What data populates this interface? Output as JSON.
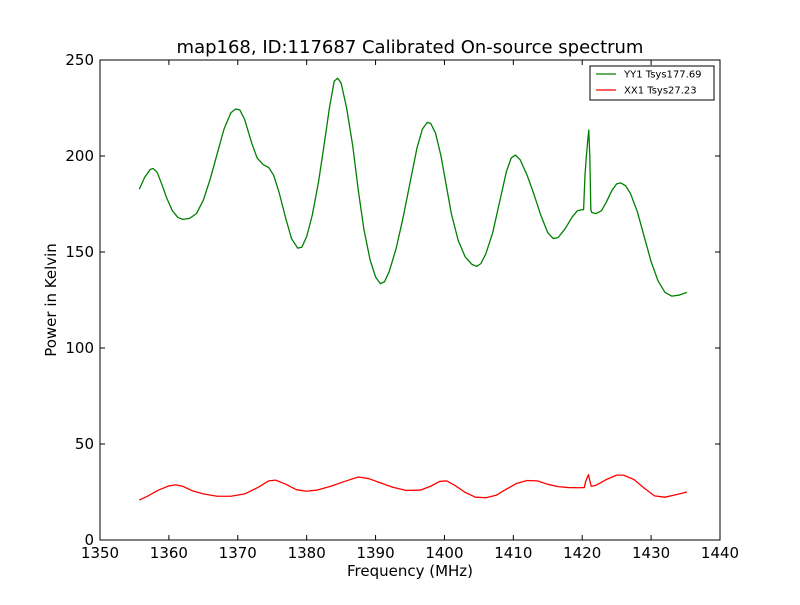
{
  "chart_data": {
    "type": "line",
    "title": "map168, ID:117687 Calibrated On-source spectrum",
    "xlabel": "Frequency (MHz)",
    "ylabel": "Power in Kelvin",
    "xlim": [
      1350,
      1440
    ],
    "ylim": [
      0,
      250
    ],
    "xticks": [
      1350,
      1360,
      1370,
      1380,
      1390,
      1400,
      1410,
      1420,
      1430,
      1440
    ],
    "yticks": [
      0,
      50,
      100,
      150,
      200,
      250
    ],
    "xtick_labels": [
      "1350",
      "1360",
      "1370",
      "1380",
      "1390",
      "1400",
      "1410",
      "1420",
      "1430",
      "1440"
    ],
    "ytick_labels": [
      "0",
      "50",
      "100",
      "150",
      "200",
      "250"
    ],
    "grid": false,
    "legend_position": "top-right",
    "series": [
      {
        "name": "YY1 Tsys177.69",
        "color": "#008000",
        "points": [
          [
            1355.7,
            182.7
          ],
          [
            1356.5,
            189.0
          ],
          [
            1357.3,
            193.0
          ],
          [
            1357.7,
            193.5
          ],
          [
            1358.3,
            191.5
          ],
          [
            1359.0,
            185.0
          ],
          [
            1359.7,
            178.0
          ],
          [
            1360.5,
            171.5
          ],
          [
            1361.3,
            168.0
          ],
          [
            1362.0,
            167.0
          ],
          [
            1363.0,
            167.5
          ],
          [
            1364.0,
            170.0
          ],
          [
            1365.0,
            177.0
          ],
          [
            1366.0,
            188.0
          ],
          [
            1367.0,
            201.0
          ],
          [
            1368.0,
            214.0
          ],
          [
            1369.0,
            222.5
          ],
          [
            1369.7,
            224.5
          ],
          [
            1370.3,
            224.0
          ],
          [
            1371.0,
            219.0
          ],
          [
            1372.0,
            207.0
          ],
          [
            1372.8,
            199.0
          ],
          [
            1373.7,
            195.5
          ],
          [
            1374.5,
            194.0
          ],
          [
            1375.2,
            190.0
          ],
          [
            1376.0,
            181.0
          ],
          [
            1377.0,
            167.0
          ],
          [
            1377.8,
            157.0
          ],
          [
            1378.7,
            152.0
          ],
          [
            1379.3,
            152.5
          ],
          [
            1380.0,
            158.0
          ],
          [
            1380.8,
            169.0
          ],
          [
            1381.7,
            186.0
          ],
          [
            1382.5,
            205.0
          ],
          [
            1383.3,
            225.0
          ],
          [
            1384.0,
            239.0
          ],
          [
            1384.5,
            240.5
          ],
          [
            1385.0,
            238.0
          ],
          [
            1385.8,
            225.0
          ],
          [
            1386.7,
            205.0
          ],
          [
            1387.5,
            182.0
          ],
          [
            1388.3,
            162.0
          ],
          [
            1389.2,
            146.0
          ],
          [
            1390.0,
            137.0
          ],
          [
            1390.7,
            133.5
          ],
          [
            1391.3,
            134.5
          ],
          [
            1392.0,
            140.0
          ],
          [
            1393.0,
            152.0
          ],
          [
            1394.0,
            168.0
          ],
          [
            1395.0,
            186.0
          ],
          [
            1396.0,
            204.0
          ],
          [
            1396.8,
            214.0
          ],
          [
            1397.5,
            217.5
          ],
          [
            1398.0,
            217.0
          ],
          [
            1398.7,
            212.0
          ],
          [
            1399.5,
            200.0
          ],
          [
            1400.3,
            184.0
          ],
          [
            1401.0,
            170.0
          ],
          [
            1402.0,
            156.0
          ],
          [
            1403.0,
            147.5
          ],
          [
            1404.0,
            143.5
          ],
          [
            1404.7,
            142.5
          ],
          [
            1405.3,
            144.0
          ],
          [
            1406.0,
            149.0
          ],
          [
            1407.0,
            160.0
          ],
          [
            1408.0,
            176.0
          ],
          [
            1409.0,
            192.0
          ],
          [
            1409.7,
            199.0
          ],
          [
            1410.3,
            200.5
          ],
          [
            1411.0,
            198.0
          ],
          [
            1412.0,
            190.0
          ],
          [
            1413.0,
            180.0
          ],
          [
            1414.0,
            169.0
          ],
          [
            1415.0,
            160.0
          ],
          [
            1415.8,
            157.0
          ],
          [
            1416.5,
            157.5
          ],
          [
            1417.5,
            162.0
          ],
          [
            1418.5,
            168.0
          ],
          [
            1419.3,
            171.5
          ],
          [
            1419.9,
            172.0
          ],
          [
            1420.2,
            172.0
          ],
          [
            1420.4,
            190.0
          ],
          [
            1420.6,
            200.0
          ],
          [
            1420.8,
            208.0
          ],
          [
            1420.95,
            213.5
          ],
          [
            1421.1,
            200.0
          ],
          [
            1421.25,
            172.0
          ],
          [
            1421.4,
            170.5
          ],
          [
            1422.0,
            170.0
          ],
          [
            1422.8,
            171.5
          ],
          [
            1423.5,
            176.0
          ],
          [
            1424.3,
            182.0
          ],
          [
            1425.0,
            185.5
          ],
          [
            1425.6,
            186.0
          ],
          [
            1426.3,
            184.5
          ],
          [
            1427.0,
            180.5
          ],
          [
            1428.0,
            171.0
          ],
          [
            1429.0,
            158.0
          ],
          [
            1430.0,
            145.0
          ],
          [
            1431.0,
            135.0
          ],
          [
            1432.0,
            129.0
          ],
          [
            1433.0,
            127.0
          ],
          [
            1434.0,
            127.5
          ],
          [
            1435.2,
            129.0
          ]
        ]
      },
      {
        "name": "XX1 Tsys27.23",
        "color": "#ff0000",
        "points": [
          [
            1355.7,
            20.8
          ],
          [
            1357.0,
            23.0
          ],
          [
            1358.5,
            26.0
          ],
          [
            1360.0,
            28.2
          ],
          [
            1361.0,
            28.7
          ],
          [
            1362.0,
            28.0
          ],
          [
            1363.5,
            25.5
          ],
          [
            1365.0,
            24.0
          ],
          [
            1367.0,
            22.8
          ],
          [
            1369.0,
            22.8
          ],
          [
            1371.0,
            24.0
          ],
          [
            1373.0,
            27.5
          ],
          [
            1374.5,
            30.8
          ],
          [
            1375.5,
            31.2
          ],
          [
            1377.0,
            29.0
          ],
          [
            1378.5,
            26.2
          ],
          [
            1380.0,
            25.4
          ],
          [
            1381.5,
            26.0
          ],
          [
            1383.5,
            28.0
          ],
          [
            1385.5,
            30.5
          ],
          [
            1387.5,
            32.8
          ],
          [
            1389.0,
            32.0
          ],
          [
            1390.5,
            30.0
          ],
          [
            1392.5,
            27.5
          ],
          [
            1394.5,
            25.8
          ],
          [
            1396.5,
            26.0
          ],
          [
            1398.0,
            28.0
          ],
          [
            1399.3,
            30.5
          ],
          [
            1400.3,
            30.8
          ],
          [
            1401.5,
            28.5
          ],
          [
            1403.0,
            24.8
          ],
          [
            1404.5,
            22.3
          ],
          [
            1406.0,
            22.0
          ],
          [
            1407.5,
            23.3
          ],
          [
            1409.0,
            26.5
          ],
          [
            1410.5,
            29.5
          ],
          [
            1412.0,
            31.0
          ],
          [
            1413.5,
            30.8
          ],
          [
            1415.0,
            29.0
          ],
          [
            1416.5,
            27.8
          ],
          [
            1418.0,
            27.3
          ],
          [
            1419.5,
            27.2
          ],
          [
            1420.3,
            27.3
          ],
          [
            1420.5,
            30.5
          ],
          [
            1420.9,
            34.0
          ],
          [
            1421.3,
            28.0
          ],
          [
            1422.0,
            28.5
          ],
          [
            1423.5,
            31.5
          ],
          [
            1425.0,
            33.8
          ],
          [
            1426.0,
            33.8
          ],
          [
            1427.5,
            31.5
          ],
          [
            1429.0,
            27.0
          ],
          [
            1430.5,
            23.0
          ],
          [
            1432.0,
            22.3
          ],
          [
            1433.5,
            23.5
          ],
          [
            1435.2,
            25.0
          ]
        ]
      }
    ]
  }
}
